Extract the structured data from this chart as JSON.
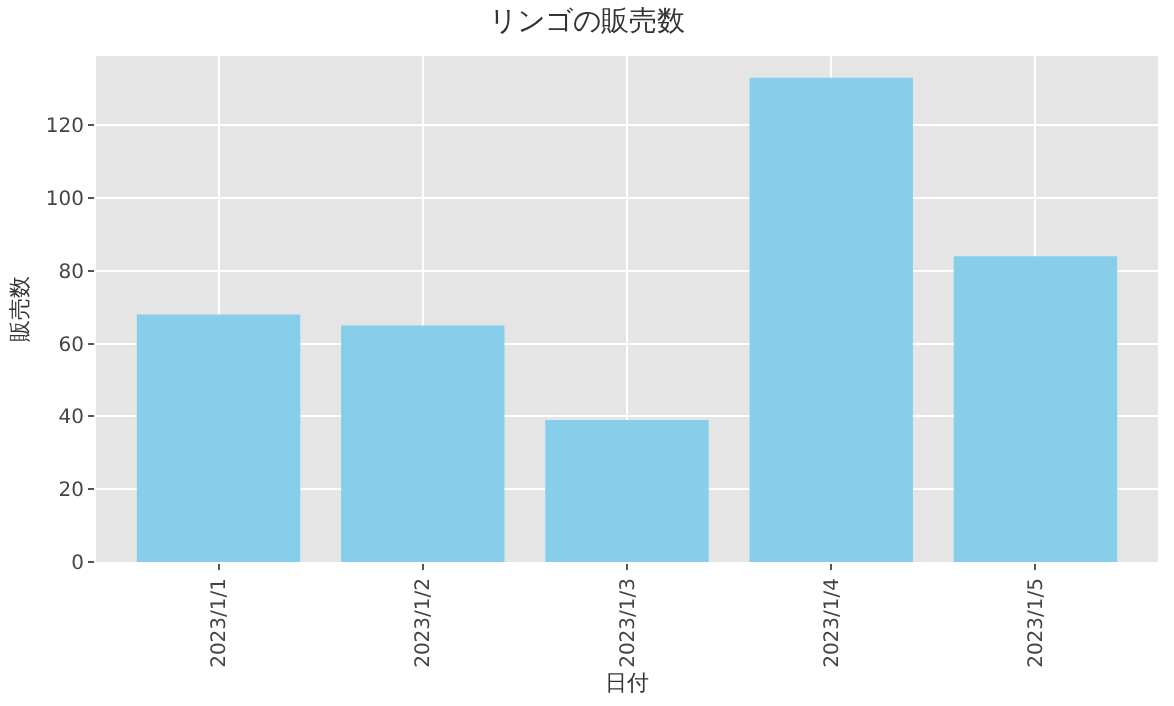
{
  "chart_data": {
    "type": "bar",
    "title": "リンゴの販売数",
    "xlabel": "日付",
    "ylabel": "販売数",
    "categories": [
      "2023/1/1",
      "2023/1/2",
      "2023/1/3",
      "2023/1/4",
      "2023/1/5"
    ],
    "values": [
      68,
      65,
      39,
      133,
      84
    ],
    "color": "#87ceeb",
    "ylim": [
      0,
      139
    ],
    "yticks": [
      0,
      20,
      40,
      60,
      80,
      100,
      120
    ],
    "grid": true
  }
}
